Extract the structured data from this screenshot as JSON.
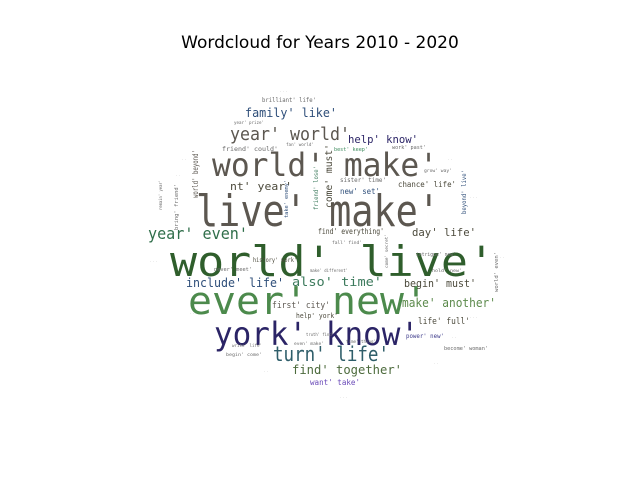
{
  "title": "Wordcloud for Years 2010 - 2020",
  "words": [
    {
      "text": "live' make'",
      "color": "#5c5750"
    },
    {
      "text": "world' live'",
      "color": "#2f5e2c"
    },
    {
      "text": "ever' new'",
      "color": "#4c8a4c"
    },
    {
      "text": "york' know'",
      "color": "#2b2466"
    },
    {
      "text": "world' make'",
      "color": "#5c5750"
    },
    {
      "text": "turn' life'",
      "color": "#2f5e6a"
    },
    {
      "text": "year' world'",
      "color": "#5c5750"
    },
    {
      "text": "year' even'",
      "color": "#2f6e4a"
    },
    {
      "text": "family' like'",
      "color": "#2f4f7a"
    },
    {
      "text": "include' life'",
      "color": "#2f4f7a"
    },
    {
      "text": "also' time'",
      "color": "#3c7a5c"
    },
    {
      "text": "find' together'",
      "color": "#4c6a3c"
    },
    {
      "text": "make' another'",
      "color": "#5c8a4c"
    },
    {
      "text": "begin' must'",
      "color": "#4c4a3c"
    },
    {
      "text": "day' life'",
      "color": "#4c4a3c"
    },
    {
      "text": "nt' year'",
      "color": "#4c4a3c"
    },
    {
      "text": "help' know'",
      "color": "#2b2466"
    },
    {
      "text": "world' beyond'",
      "color": "#5c5750"
    },
    {
      "text": "come' must'",
      "color": "#4c4a3c"
    },
    {
      "text": "history' work'",
      "color": "#4c4a3c"
    },
    {
      "text": "first' city'",
      "color": "#5c5750"
    },
    {
      "text": "life' full'",
      "color": "#4c4a3c"
    },
    {
      "text": "want' take'",
      "color": "#6a4ab8"
    },
    {
      "text": "chance' life'",
      "color": "#4c4a3c"
    },
    {
      "text": "new' set'",
      "color": "#2f4f7a"
    },
    {
      "text": "find' everything'",
      "color": "#4c4a3c"
    },
    {
      "text": "help' york'",
      "color": "#4c4a3c"
    },
    {
      "text": "brilliant' life'",
      "color": "#6a6a6a"
    },
    {
      "text": "friend' could'",
      "color": "#6a6a6a"
    },
    {
      "text": "sister' time'",
      "color": "#6a6a6a"
    },
    {
      "text": "work' past'",
      "color": "#6a6a6a"
    },
    {
      "text": "best' keep'",
      "color": "#3c8a5c"
    },
    {
      "text": "grow' way'",
      "color": "#6a6a6a"
    },
    {
      "text": "never' meet'",
      "color": "#6a6a6a"
    },
    {
      "text": "become' woman'",
      "color": "#6a6a6a"
    },
    {
      "text": "power' new'",
      "color": "#3c3a8a"
    },
    {
      "text": "truth' find'",
      "color": "#6a6a6a"
    },
    {
      "text": "begin' come'",
      "color": "#6a6a6a"
    },
    {
      "text": "make' different'",
      "color": "#6a6a6a"
    },
    {
      "text": "fall' find'",
      "color": "#6a6a6a"
    },
    {
      "text": "hold' new'",
      "color": "#6a6a6a"
    },
    {
      "text": "beyond' live'",
      "color": "#2f4f7a"
    },
    {
      "text": "world' even'",
      "color": "#6a6a6a"
    },
    {
      "text": "friend' lose'",
      "color": "#3c7a5c"
    },
    {
      "text": "take' enemy'",
      "color": "#2f4f7a"
    },
    {
      "text": "bring' friend'",
      "color": "#6a6a6a"
    },
    {
      "text": "remain' year'",
      "color": "#6a6a6a"
    },
    {
      "text": "year' prize'",
      "color": "#6a6a6a"
    },
    {
      "text": "fan' world'",
      "color": "#6a6a6a"
    },
    {
      "text": "intrigue' new'",
      "color": "#6a6a6a"
    },
    {
      "text": "come' secret'",
      "color": "#6a6a6a"
    },
    {
      "text": "even' make'",
      "color": "#6a6a6a"
    },
    {
      "text": "time' thing'",
      "color": "#6a6a6a"
    },
    {
      "text": "write' life'",
      "color": "#6a6a6a"
    }
  ]
}
